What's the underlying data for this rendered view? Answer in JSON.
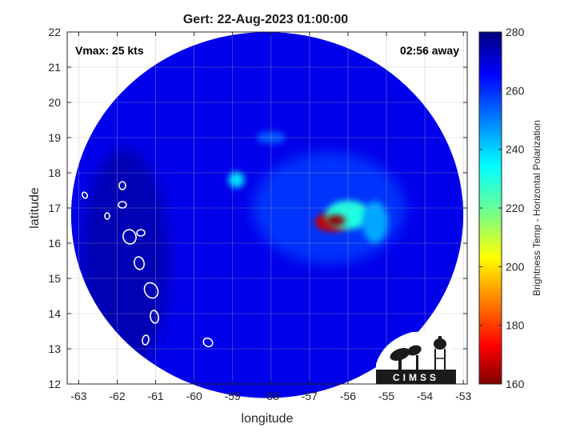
{
  "chart_data": {
    "type": "heatmap",
    "title": "Gert: 22-Aug-2023 01:00:00",
    "xlabel": "longitude",
    "ylabel": "latitude",
    "xlim": [
      -63.3,
      -52.9
    ],
    "ylim": [
      12,
      22
    ],
    "xticks": [
      -63,
      -62,
      -61,
      -60,
      -59,
      -58,
      -57,
      -56,
      -55,
      -54,
      -53
    ],
    "yticks": [
      12,
      13,
      14,
      15,
      16,
      17,
      18,
      19,
      20,
      21,
      22
    ],
    "grid": true,
    "annotations": {
      "left": "Vmax: 25 kts",
      "right": "02:56 away"
    },
    "colorbar": {
      "label": "Brightness Temp - Horizontal Polarization",
      "range": [
        160,
        280
      ],
      "ticks": [
        160,
        180,
        200,
        220,
        240,
        260,
        280
      ],
      "colormap": "jet"
    },
    "swath": {
      "center_lon": -58.1,
      "center_lat": 16.8,
      "radius_lon": 5.1,
      "radius_lat": 5.2
    },
    "background_value": 268,
    "features": [
      {
        "lon": -56.4,
        "lat": 16.6,
        "value": 168
      },
      {
        "lon": -56.0,
        "lat": 16.8,
        "value": 230
      },
      {
        "lon": -55.3,
        "lat": 16.6,
        "value": 245
      },
      {
        "lon": -58.9,
        "lat": 17.8,
        "value": 238
      },
      {
        "lon": -58.0,
        "lat": 19.0,
        "value": 255
      }
    ],
    "logo": "CIMSS"
  }
}
